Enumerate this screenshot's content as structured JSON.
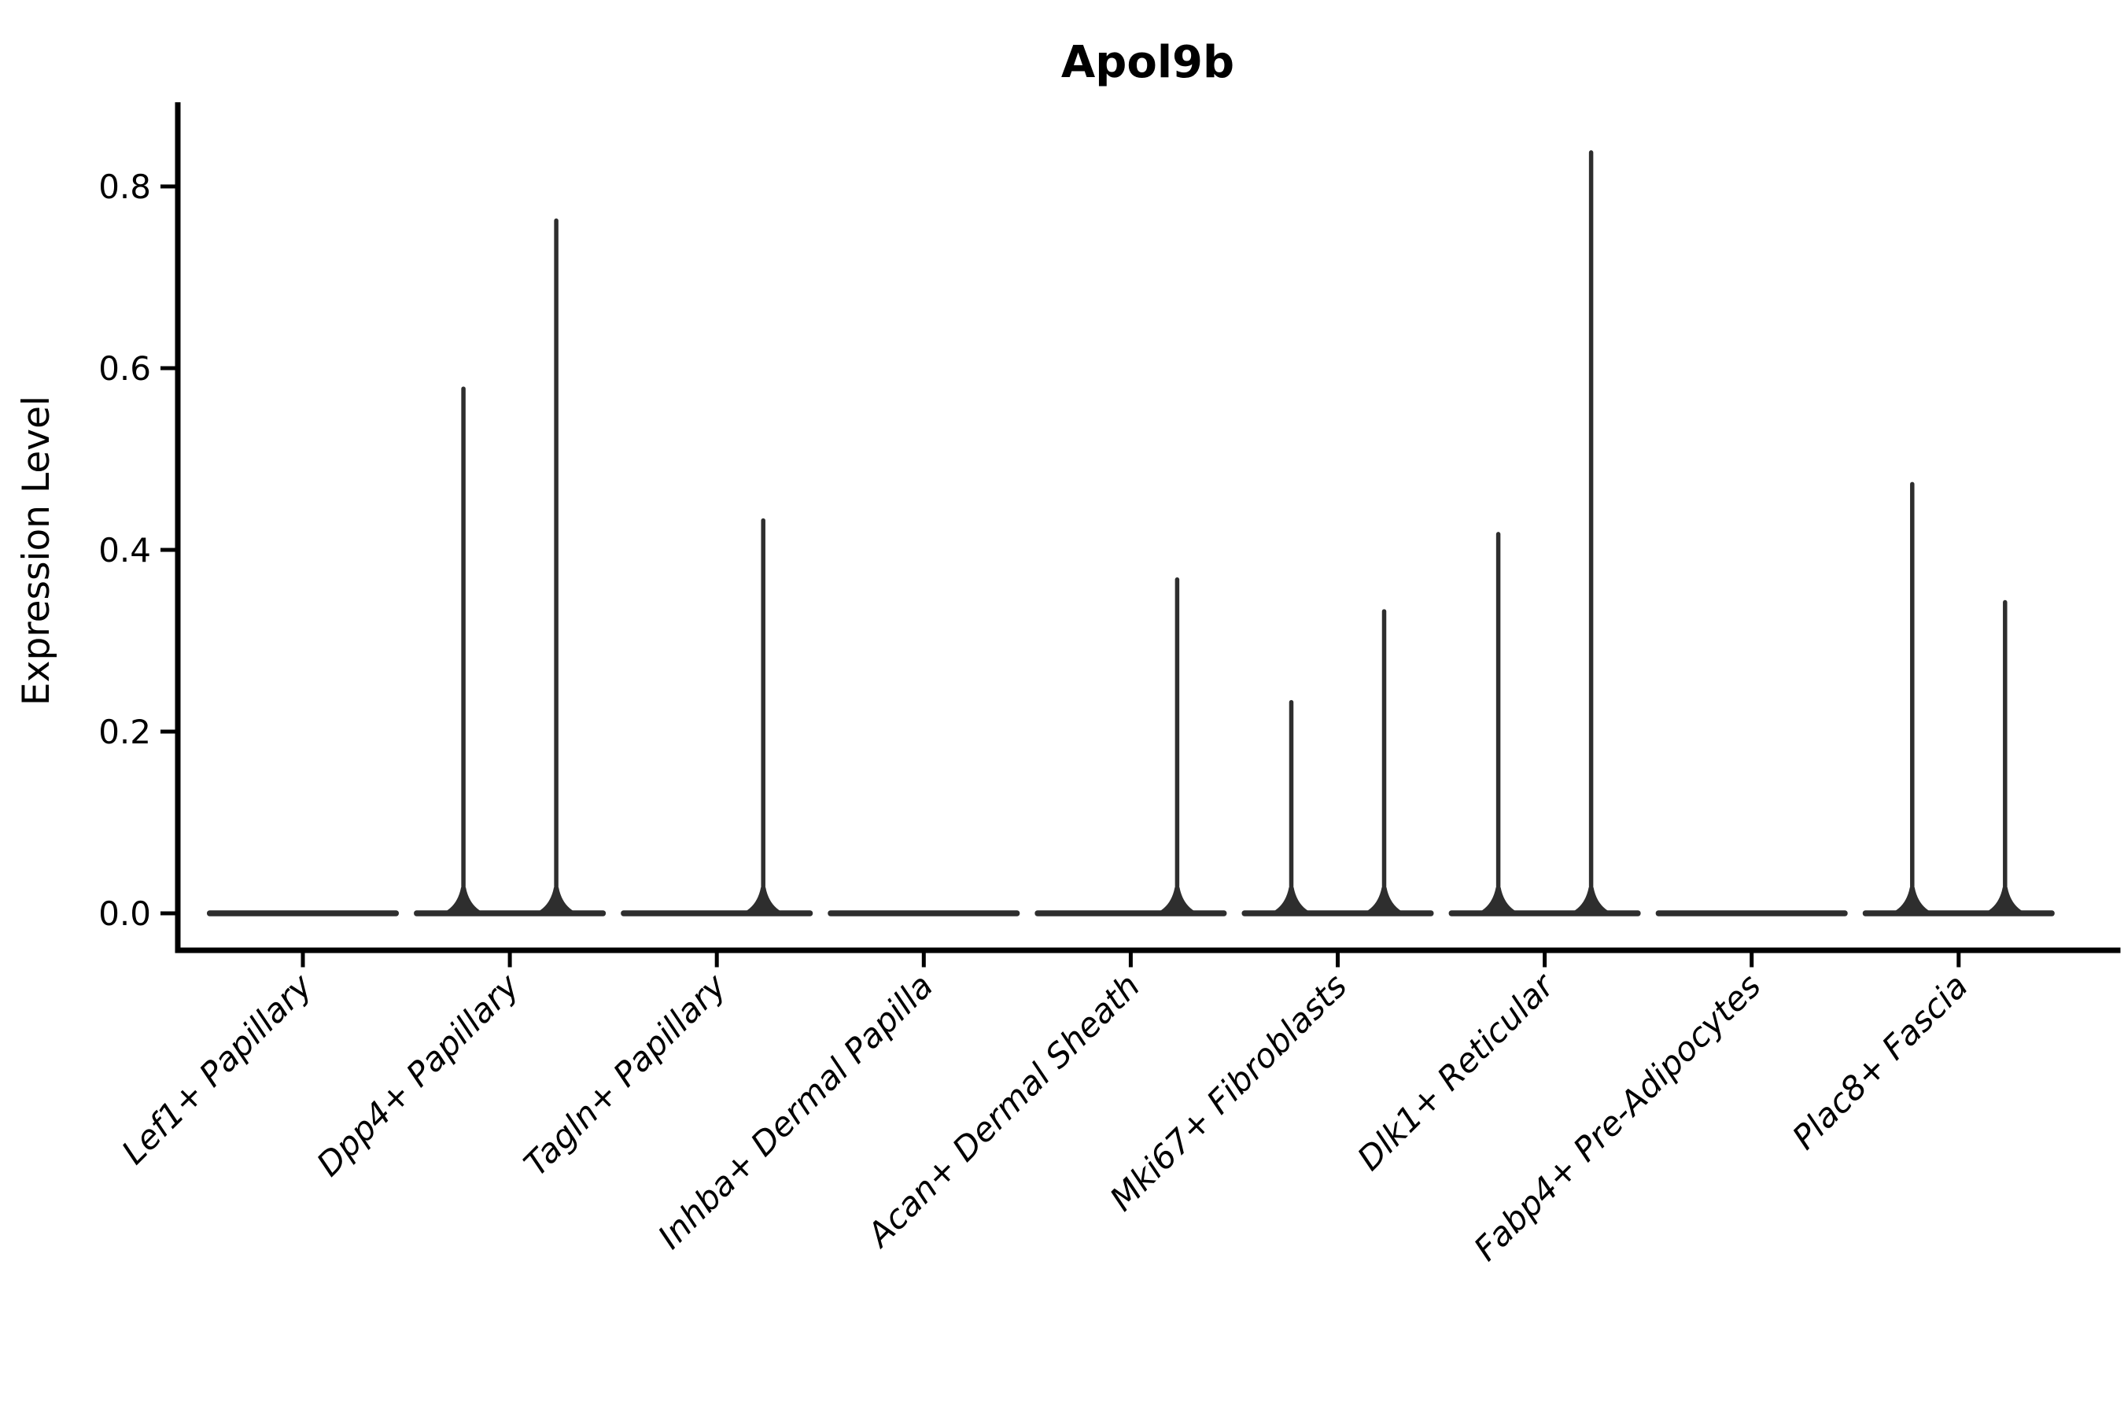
{
  "title": "Apol9b",
  "axes": {
    "ylabel": "Expression Level",
    "ytick_labels": [
      "0.0",
      "0.2",
      "0.4",
      "0.6",
      "0.8"
    ]
  },
  "colors": {
    "violin": "#2e2e2e",
    "axis": "#000000",
    "background": "#ffffff"
  },
  "chart_data": {
    "type": "violin",
    "title": "Apol9b",
    "xlabel": "",
    "ylabel": "Expression Level",
    "ylim": [
      0,
      0.89
    ],
    "yticks": [
      0.0,
      0.2,
      0.4,
      0.6,
      0.8
    ],
    "grid": false,
    "legend": "none",
    "categories": [
      "Lef1+ Papillary",
      "Dpp4+ Papillary",
      "Tagln+ Papillary",
      "Inhba+ Dermal Papilla",
      "Acan+ Dermal Sheath",
      "Mki67+ Fibroblasts",
      "Dlk1+ Reticular",
      "Fabp4+ Pre-Adipocytes",
      "Plac8+ Fascia"
    ],
    "description": "Each category shows a flat violin body at expression 0 with up to two thin density spikes (left/right sub-violin) reaching the maximum expression value.",
    "series": [
      {
        "name": "left-spike-max",
        "values": [
          0,
          0.58,
          0,
          0,
          0,
          0.235,
          0.42,
          0,
          0.475
        ]
      },
      {
        "name": "right-spike-max",
        "values": [
          0,
          0.765,
          0.435,
          0,
          0.37,
          0.335,
          0.84,
          0,
          0.345
        ]
      }
    ]
  }
}
